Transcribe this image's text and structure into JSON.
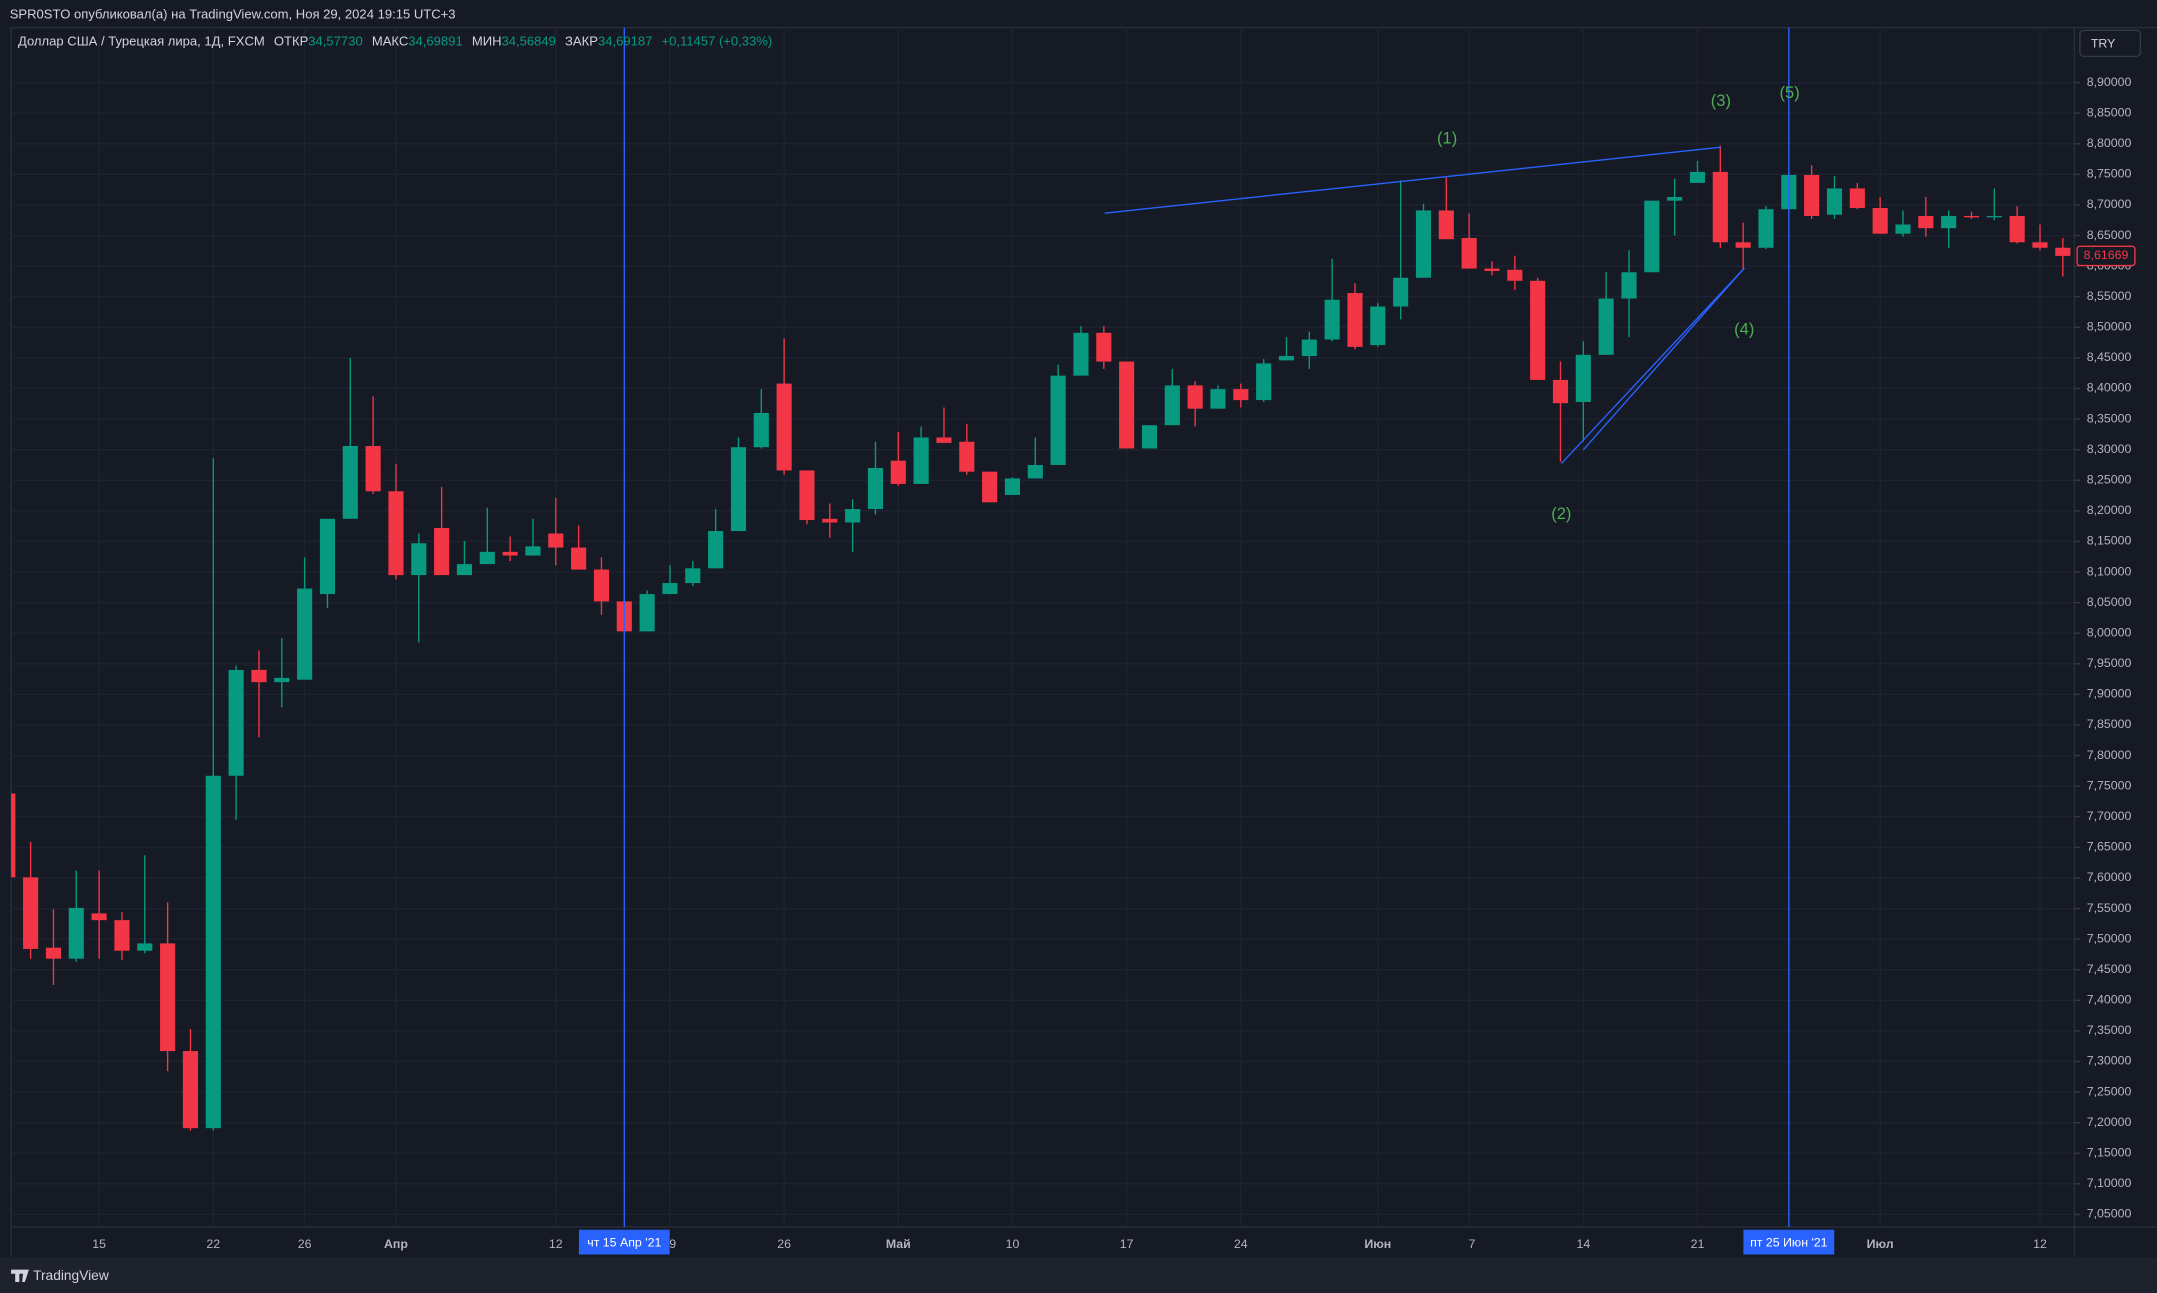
{
  "header": {
    "published": "SPR0STO опубликовал(а) на TradingView.com, Ноя 29, 2024 19:15 UTC+3",
    "title": "Доллар США / Турецкая лира, 1Д, FXCM",
    "ohlc": [
      {
        "label": "ОТКР",
        "value": "34,57730"
      },
      {
        "label": "МАКС",
        "value": "34,69891"
      },
      {
        "label": "МИН",
        "value": "34,56849"
      },
      {
        "label": "ЗАКР",
        "value": "34,69187"
      }
    ],
    "change": "+0,11457 (+0,33%)"
  },
  "currency": "TRY",
  "footer": "TradingView",
  "chart_data": {
    "type": "candlestick",
    "up_color": "#089981",
    "down_color": "#f23645",
    "drawing_color": "#2962ff",
    "annotation_color": "#4caf50",
    "grid": true,
    "categories": [
      null,
      null,
      null,
      null,
      "15",
      null,
      null,
      null,
      null,
      "22",
      null,
      null,
      null,
      "26",
      null,
      null,
      null,
      "Апр",
      null,
      null,
      null,
      null,
      null,
      null,
      "12",
      null,
      null,
      "чт 15 Апр '21",
      null,
      "9",
      null,
      null,
      null,
      null,
      "26",
      null,
      null,
      null,
      null,
      "Май",
      null,
      null,
      null,
      null,
      "10",
      null,
      null,
      null,
      null,
      "17",
      null,
      null,
      null,
      null,
      "24",
      null,
      null,
      null,
      null,
      null,
      "Июн",
      null,
      null,
      null,
      "7",
      null,
      null,
      null,
      null,
      "14",
      null,
      null,
      null,
      null,
      "21",
      null,
      null,
      null,
      "пт 25 Июн '21",
      null,
      null,
      null,
      "Июл",
      null,
      null,
      null,
      null,
      null,
      null,
      "12",
      null
    ],
    "highlight": [
      "чт 15 Апр '21",
      "пт 25 Июн '21"
    ],
    "open": [
      7.738,
      7.601,
      7.486,
      7.468,
      7.542,
      7.531,
      7.481,
      7.493,
      7.317,
      7.191,
      7.767,
      7.94,
      7.92,
      7.924,
      8.064,
      8.187,
      8.306,
      8.232,
      8.095,
      8.172,
      8.095,
      8.113,
      8.133,
      8.127,
      8.163,
      8.14,
      8.104,
      8.052,
      8.003,
      8.064,
      8.082,
      8.106,
      8.167,
      8.304,
      8.408,
      8.266,
      8.187,
      8.181,
      8.203,
      8.282,
      8.244,
      8.32,
      8.313,
      8.264,
      8.226,
      8.253,
      8.275,
      8.421,
      8.491,
      8.444,
      8.302,
      8.34,
      8.405,
      8.367,
      8.399,
      8.381,
      8.446,
      8.453,
      8.48,
      8.556,
      8.471,
      8.534,
      8.581,
      8.691,
      8.646,
      8.596,
      8.594,
      8.576,
      8.414,
      8.378,
      8.455,
      8.547,
      8.59,
      8.707,
      8.736,
      8.754,
      8.639,
      8.63,
      8.693,
      8.749,
      8.684,
      8.727,
      8.695,
      8.653,
      8.682,
      8.662,
      8.682,
      8.68,
      8.682,
      8.639,
      8.63
    ],
    "high": [
      7.738,
      7.659,
      7.549,
      7.612,
      7.612,
      7.544,
      7.637,
      7.56,
      7.353,
      8.286,
      7.947,
      7.972,
      7.992,
      8.124,
      8.187,
      8.45,
      8.387,
      8.277,
      8.163,
      8.239,
      8.151,
      8.205,
      8.158,
      8.187,
      8.221,
      8.176,
      8.124,
      8.149,
      8.07,
      8.111,
      8.118,
      8.203,
      8.32,
      8.399,
      8.482,
      8.266,
      8.212,
      8.219,
      8.313,
      8.329,
      8.338,
      8.369,
      8.342,
      8.264,
      8.255,
      8.32,
      8.439,
      8.502,
      8.502,
      8.444,
      8.34,
      8.432,
      8.412,
      8.405,
      8.408,
      8.448,
      8.484,
      8.493,
      8.612,
      8.572,
      8.54,
      8.74,
      8.702,
      8.745,
      8.686,
      8.608,
      8.617,
      8.581,
      8.444,
      8.477,
      8.59,
      8.626,
      8.707,
      8.743,
      8.772,
      8.797,
      8.671,
      8.698,
      8.761,
      8.765,
      8.747,
      8.736,
      8.713,
      8.691,
      8.713,
      8.691,
      8.689,
      8.727,
      8.698,
      8.668,
      8.646
    ],
    "low": [
      7.601,
      7.468,
      7.425,
      7.463,
      7.468,
      7.466,
      7.477,
      7.284,
      7.187,
      7.187,
      7.695,
      7.83,
      7.879,
      7.924,
      8.041,
      8.187,
      8.228,
      8.088,
      7.985,
      8.095,
      8.095,
      8.113,
      8.118,
      8.127,
      8.111,
      8.104,
      8.03,
      8.003,
      8.003,
      8.064,
      8.077,
      8.106,
      8.167,
      8.302,
      8.259,
      8.178,
      8.156,
      8.133,
      8.194,
      8.241,
      8.244,
      8.311,
      8.259,
      8.214,
      8.226,
      8.253,
      8.275,
      8.421,
      8.432,
      8.302,
      8.302,
      8.34,
      8.338,
      8.367,
      8.369,
      8.378,
      8.446,
      8.432,
      8.477,
      8.464,
      8.468,
      8.513,
      8.581,
      8.644,
      8.596,
      8.585,
      8.561,
      8.414,
      8.28,
      8.313,
      8.455,
      8.484,
      8.59,
      8.65,
      8.736,
      8.63,
      8.594,
      8.628,
      8.693,
      8.677,
      8.677,
      8.693,
      8.653,
      8.648,
      8.648,
      8.63,
      8.677,
      8.675,
      8.637,
      8.626,
      8.583
    ],
    "close": [
      7.601,
      7.484,
      7.468,
      7.551,
      7.531,
      7.481,
      7.493,
      7.317,
      7.191,
      7.767,
      7.94,
      7.92,
      7.927,
      8.073,
      8.187,
      8.306,
      8.232,
      8.095,
      8.147,
      8.095,
      8.113,
      8.133,
      8.127,
      8.142,
      8.14,
      8.104,
      8.052,
      8.003,
      8.064,
      8.082,
      8.106,
      8.167,
      8.304,
      8.36,
      8.266,
      8.185,
      8.181,
      8.203,
      8.27,
      8.244,
      8.32,
      8.311,
      8.264,
      8.214,
      8.253,
      8.275,
      8.421,
      8.491,
      8.444,
      8.302,
      8.34,
      8.405,
      8.367,
      8.399,
      8.381,
      8.441,
      8.453,
      8.48,
      8.545,
      8.468,
      8.534,
      8.581,
      8.691,
      8.644,
      8.596,
      8.592,
      8.576,
      8.414,
      8.376,
      8.455,
      8.547,
      8.59,
      8.707,
      8.713,
      8.754,
      8.639,
      8.63,
      8.693,
      8.749,
      8.682,
      8.727,
      8.695,
      8.653,
      8.668,
      8.662,
      8.682,
      8.68,
      8.682,
      8.639,
      8.63,
      8.61669
    ],
    "last_price": {
      "value": 8.61669,
      "label": "8,61669"
    },
    "annotations": [
      "(1)",
      "(2)",
      "(3)",
      "(4)",
      "(5)"
    ],
    "ylim": [
      7.043,
      8.99
    ],
    "yticks": [
      {
        "value": 8.9,
        "label": "8,90000"
      },
      {
        "value": 8.85,
        "label": "8,85000"
      },
      {
        "value": 8.8,
        "label": "8,80000"
      },
      {
        "value": 8.75,
        "label": "8,75000"
      },
      {
        "value": 8.7,
        "label": "8,70000"
      },
      {
        "value": 8.65,
        "label": "8,65000"
      },
      {
        "value": 8.6,
        "label": "8,60000"
      },
      {
        "value": 8.55,
        "label": "8,55000"
      },
      {
        "value": 8.5,
        "label": "8,50000"
      },
      {
        "value": 8.45,
        "label": "8,45000"
      },
      {
        "value": 8.4,
        "label": "8,40000"
      },
      {
        "value": 8.35,
        "label": "8,35000"
      },
      {
        "value": 8.3,
        "label": "8,30000"
      },
      {
        "value": 8.25,
        "label": "8,25000"
      },
      {
        "value": 8.2,
        "label": "8,20000"
      },
      {
        "value": 8.15,
        "label": "8,15000"
      },
      {
        "value": 8.1,
        "label": "8,10000"
      },
      {
        "value": 8.05,
        "label": "8,05000"
      },
      {
        "value": 8.0,
        "label": "8,00000"
      },
      {
        "value": 7.95,
        "label": "7,95000"
      },
      {
        "value": 7.9,
        "label": "7,90000"
      },
      {
        "value": 7.85,
        "label": "7,85000"
      },
      {
        "value": 7.8,
        "label": "7,80000"
      },
      {
        "value": 7.75,
        "label": "7,75000"
      },
      {
        "value": 7.7,
        "label": "7,70000"
      },
      {
        "value": 7.65,
        "label": "7,65000"
      },
      {
        "value": 7.6,
        "label": "7,60000"
      },
      {
        "value": 7.55,
        "label": "7,55000"
      },
      {
        "value": 7.5,
        "label": "7,50000"
      },
      {
        "value": 7.45,
        "label": "7,45000"
      },
      {
        "value": 7.4,
        "label": "7,40000"
      },
      {
        "value": 7.35,
        "label": "7,35000"
      },
      {
        "value": 7.3,
        "label": "7,30000"
      },
      {
        "value": 7.25,
        "label": "7,25000"
      },
      {
        "value": 7.2,
        "label": "7,20000"
      },
      {
        "value": 7.15,
        "label": "7,15000"
      },
      {
        "value": 7.1,
        "label": "7,10000"
      },
      {
        "value": 7.05,
        "label": "7,05000"
      }
    ]
  }
}
